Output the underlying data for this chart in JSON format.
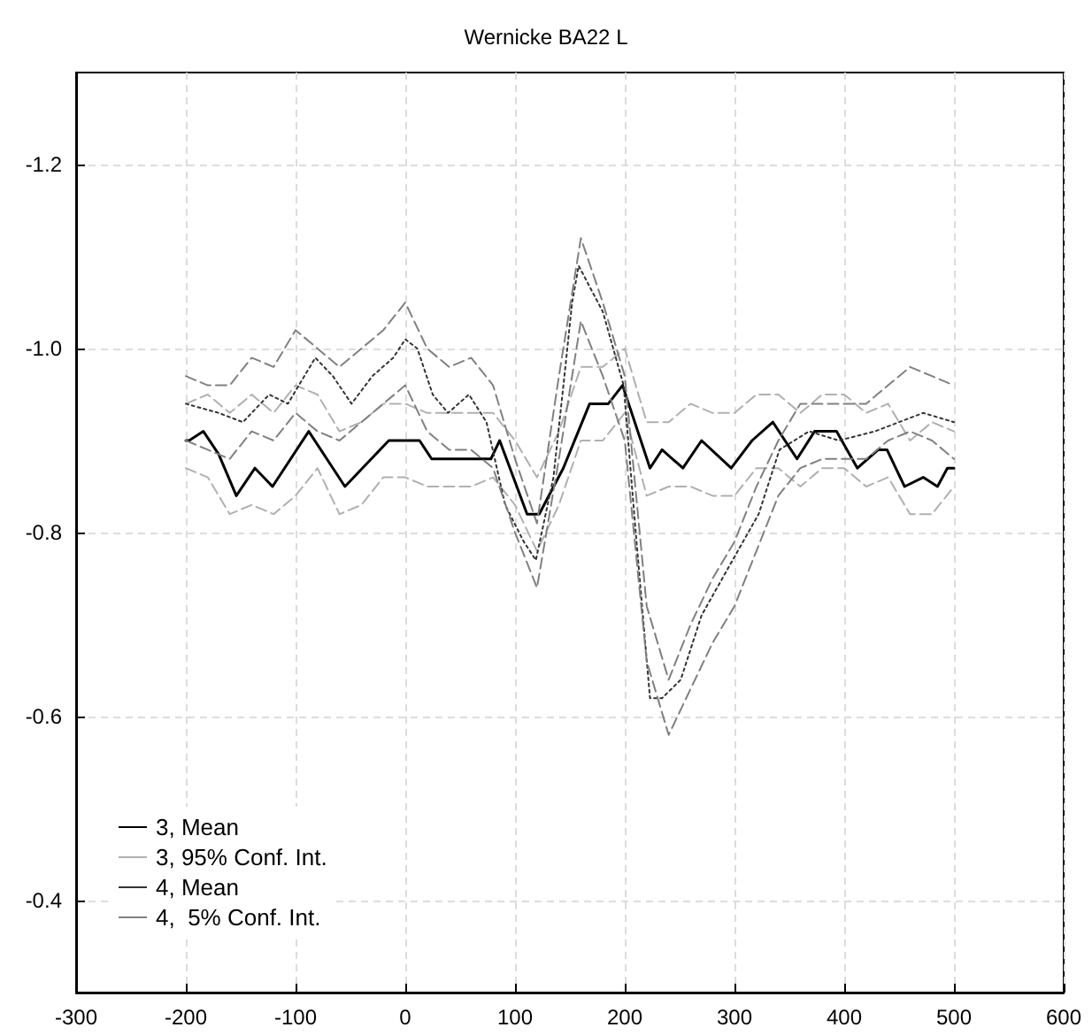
{
  "chart_data": {
    "type": "line",
    "title": "Wernicke BA22 L",
    "xlim": [
      -300,
      600
    ],
    "xticks": [
      -300,
      -200,
      -100,
      0,
      100,
      200,
      300,
      400,
      500,
      600
    ],
    "ylim": [
      -0.3,
      -1.3
    ],
    "yticks": [
      -1.2,
      {
        "value": -1,
        "label": "-1.0"
      },
      -0.8,
      -0.6,
      -0.4
    ],
    "grid": true,
    "legend": "bottom left",
    "marker": "none",
    "series": [
      {
        "name": "3, Mean",
        "color": "#000000",
        "line_style": "solid",
        "x": [
          -200,
          -197,
          -184,
          -170,
          -154,
          -137,
          -121,
          -88,
          -55,
          -31,
          -15,
          13,
          24,
          78,
          86,
          111,
          122,
          144,
          168,
          185,
          198,
          223,
          234,
          253,
          270,
          297,
          316,
          335,
          357,
          373,
          393,
          412,
          431,
          439,
          455,
          472,
          485,
          494,
          500
        ],
        "values": [
          -0.9,
          -0.9,
          -0.91,
          -0.885,
          -0.84,
          -0.87,
          -0.85,
          -0.91,
          -0.85,
          -0.88,
          -0.9,
          -0.9,
          -0.88,
          -0.88,
          -0.9,
          -0.82,
          -0.82,
          -0.87,
          -0.94,
          -0.94,
          -0.96,
          -0.87,
          -0.89,
          -0.87,
          -0.9,
          -0.87,
          -0.9,
          -0.92,
          -0.88,
          -0.91,
          -0.91,
          -0.87,
          -0.89,
          -0.89,
          -0.85,
          -0.86,
          -0.85,
          -0.87,
          -0.87
        ]
      },
      {
        "name": "3, 95% Conf. Int.",
        "color": "#b0b0b0",
        "line_style": "dashed",
        "x": [
          -200,
          -180,
          -160,
          -140,
          -120,
          -100,
          -80,
          -60,
          -40,
          -20,
          0,
          20,
          40,
          60,
          80,
          100,
          120,
          140,
          160,
          180,
          200,
          220,
          240,
          260,
          280,
          300,
          320,
          340,
          360,
          380,
          400,
          420,
          440,
          460,
          480,
          500
        ],
        "values": [
          -0.94,
          -0.95,
          -0.93,
          -0.95,
          -0.93,
          -0.96,
          -0.95,
          -0.91,
          -0.92,
          -0.94,
          -0.94,
          -0.93,
          -0.93,
          -0.93,
          -0.93,
          -0.9,
          -0.86,
          -0.91,
          -0.98,
          -0.98,
          -1,
          -0.92,
          -0.92,
          -0.94,
          -0.93,
          -0.93,
          -0.95,
          -0.95,
          -0.93,
          -0.95,
          -0.95,
          -0.93,
          -0.94,
          -0.9,
          -0.92,
          -0.91
        ]
      },
      {
        "color": "#b0b0b0",
        "line_style": "dashed",
        "x": [
          -200,
          -180,
          -160,
          -140,
          -120,
          -100,
          -80,
          -60,
          -40,
          -20,
          0,
          20,
          40,
          60,
          80,
          100,
          120,
          140,
          160,
          180,
          200,
          220,
          240,
          260,
          280,
          300,
          320,
          340,
          360,
          380,
          400,
          420,
          440,
          460,
          480,
          500
        ],
        "values": [
          -0.87,
          -0.86,
          -0.82,
          -0.83,
          -0.82,
          -0.84,
          -0.87,
          -0.82,
          -0.83,
          -0.86,
          -0.86,
          -0.85,
          -0.85,
          -0.85,
          -0.86,
          -0.83,
          -0.78,
          -0.83,
          -0.9,
          -0.9,
          -0.93,
          -0.84,
          -0.85,
          -0.85,
          -0.84,
          -0.84,
          -0.87,
          -0.87,
          -0.85,
          -0.87,
          -0.87,
          -0.85,
          -0.86,
          -0.82,
          -0.82,
          -0.85
        ]
      },
      {
        "name": "4, Mean",
        "color": "#333333",
        "line_style": "dotted",
        "x": [
          -200,
          -170,
          -148,
          -124,
          -107,
          -82,
          -66,
          -49,
          -30,
          -11,
          0,
          11,
          25,
          39,
          58,
          74,
          91,
          108,
          119,
          135,
          145,
          152,
          158,
          180,
          199,
          210,
          223,
          234,
          251,
          270,
          303,
          322,
          341,
          368,
          395,
          428,
          450,
          472,
          500
        ],
        "values": [
          -0.94,
          -0.93,
          -0.92,
          -0.95,
          -0.94,
          -0.99,
          -0.97,
          -0.94,
          -0.97,
          -0.99,
          -1.01,
          -1,
          -0.95,
          -0.93,
          -0.95,
          -0.92,
          -0.83,
          -0.79,
          -0.77,
          -0.86,
          -0.97,
          -1.05,
          -1.09,
          -1.04,
          -0.96,
          -0.8,
          -0.62,
          -0.62,
          -0.64,
          -0.71,
          -0.78,
          -0.82,
          -0.89,
          -0.91,
          -0.9,
          -0.91,
          -0.92,
          -0.93,
          -0.92
        ]
      },
      {
        "name": "4,  5% Conf. Int.",
        "color": "#808080",
        "line_style": "dashed",
        "x": [
          -200,
          -180,
          -160,
          -140,
          -120,
          -100,
          -80,
          -60,
          -40,
          -20,
          0,
          20,
          40,
          60,
          80,
          100,
          120,
          140,
          160,
          180,
          200,
          220,
          240,
          260,
          280,
          300,
          320,
          340,
          360,
          380,
          400,
          420,
          440,
          460,
          480,
          500
        ],
        "values": [
          -0.97,
          -0.96,
          -0.96,
          -0.99,
          -0.98,
          -1.02,
          -1,
          -0.98,
          -1,
          -1.02,
          -1.05,
          -1,
          -0.98,
          -0.99,
          -0.96,
          -0.88,
          -0.81,
          -0.97,
          -1.12,
          -1.05,
          -0.97,
          -0.72,
          -0.64,
          -0.7,
          -0.75,
          -0.79,
          -0.85,
          -0.9,
          -0.94,
          -0.94,
          -0.94,
          -0.94,
          -0.96,
          -0.98,
          -0.97,
          -0.96
        ]
      },
      {
        "color": "#808080",
        "line_style": "dashed",
        "x": [
          -200,
          -180,
          -160,
          -140,
          -120,
          -100,
          -80,
          -60,
          -40,
          -20,
          0,
          20,
          40,
          60,
          80,
          100,
          120,
          140,
          160,
          180,
          200,
          220,
          240,
          260,
          280,
          300,
          320,
          340,
          360,
          380,
          400,
          420,
          440,
          460,
          480,
          500
        ],
        "values": [
          -0.9,
          -0.89,
          -0.88,
          -0.91,
          -0.9,
          -0.93,
          -0.91,
          -0.9,
          -0.92,
          -0.94,
          -0.96,
          -0.91,
          -0.89,
          -0.89,
          -0.87,
          -0.8,
          -0.74,
          -0.88,
          -1.03,
          -0.97,
          -0.9,
          -0.66,
          -0.58,
          -0.63,
          -0.68,
          -0.72,
          -0.78,
          -0.84,
          -0.87,
          -0.88,
          -0.88,
          -0.88,
          -0.9,
          -0.91,
          -0.9,
          -0.88
        ]
      }
    ]
  }
}
